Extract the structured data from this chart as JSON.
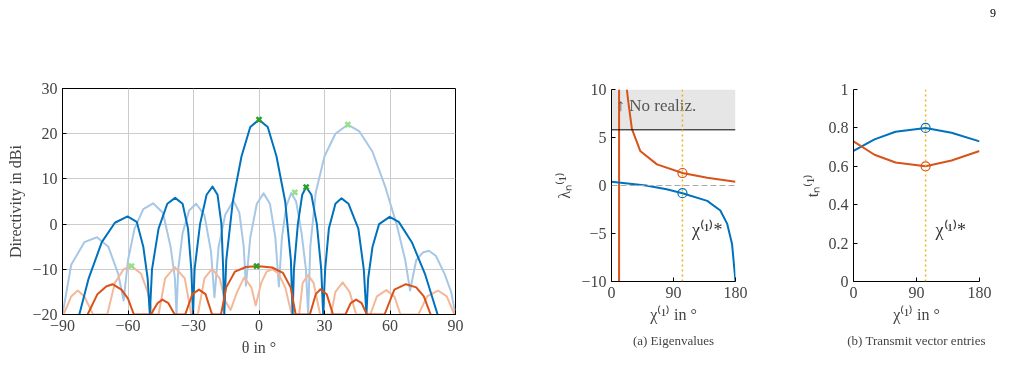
{
  "chart_data": [
    {
      "type": "line",
      "xlabel": "θ in °",
      "ylabel": "Directivity in dBi",
      "xlim": [
        -90,
        90
      ],
      "ylim": [
        -20,
        30
      ],
      "xticks": [
        {
          "value": -90,
          "label": "−90"
        },
        {
          "value": -60,
          "label": "−60"
        },
        {
          "value": -30,
          "label": "−30"
        },
        0,
        30,
        60,
        90
      ],
      "yticks": [
        {
          "value": -20,
          "label": "−20"
        },
        {
          "value": -10,
          "label": "−10"
        },
        0,
        10,
        20,
        30
      ],
      "grid": true,
      "series": [
        {
          "color": "#a6c8e6",
          "x": [
            -90,
            -86,
            -80,
            -74.2,
            -69,
            -64.5,
            -62,
            -60,
            -57,
            -53,
            -48.5,
            -44,
            -40.5,
            -38.5,
            -37.8,
            -37,
            -35,
            -32,
            -28.8,
            -25,
            -22,
            -20.4,
            -18.5,
            -15.5,
            -11.7,
            -9,
            -7,
            -6,
            -4,
            -1,
            2.1,
            5,
            7.5,
            9.1,
            10.5,
            12.5,
            14.8,
            17,
            19.5,
            21.5,
            22.5,
            23.5,
            26,
            30,
            35,
            40.7,
            46,
            52,
            58,
            63,
            67,
            69.2,
            72,
            75,
            77.8,
            81,
            85,
            88,
            90
          ],
          "values": [
            -20,
            -9,
            -4,
            -2.9,
            -5,
            -11,
            -16.9,
            -8,
            -1,
            3.3,
            4.6,
            2.5,
            -5,
            -12,
            -20,
            -10,
            -2,
            3,
            4.5,
            2,
            -6,
            -16.2,
            -5,
            2,
            5.2,
            2.5,
            -5,
            -13.6,
            -3,
            4.5,
            6.8,
            4.5,
            -3,
            -13.8,
            -3,
            4,
            6.9,
            5,
            -2,
            -10,
            -20,
            -5,
            7,
            15,
            20,
            22,
            20.5,
            16,
            8,
            0,
            -8,
            -14.7,
            -8,
            -6.3,
            -5.9,
            -7,
            -11,
            -15,
            -20
          ]
        },
        {
          "color": "#f4b899",
          "x": [
            -89.5,
            -86,
            -83,
            -80,
            -76,
            -69.5,
            -66,
            -62,
            -58.4,
            -54,
            -51,
            -48.7,
            -46,
            -43,
            -38.6,
            -34,
            -31,
            -28,
            -25,
            -21.5,
            -18,
            -15.5,
            -13,
            -10,
            -6.8,
            -3.5,
            -1.5,
            1,
            3.5,
            6.2,
            9,
            12,
            15,
            18.4,
            20,
            22.5,
            25,
            28,
            33,
            35,
            38.3,
            41.5,
            44.5,
            51,
            54,
            58.3,
            62,
            64.8,
            73,
            77,
            82,
            86,
            89.5
          ],
          "values": [
            -20,
            -16,
            -14.7,
            -16,
            -20,
            -20,
            -13,
            -10,
            -9.3,
            -11,
            -15,
            -20,
            -20,
            -12,
            -9.5,
            -12,
            -20,
            -20,
            -12,
            -9.9,
            -12,
            -17,
            -19,
            -15,
            -11.8,
            -14,
            -18,
            -13,
            -10.5,
            -10,
            -11,
            -14,
            -20,
            -20,
            -13,
            -11.3,
            -13,
            -20,
            -20,
            -15,
            -12.9,
            -15,
            -20,
            -20,
            -16,
            -14.6,
            -16,
            -20,
            -20,
            -16,
            -14.7,
            -16,
            -20
          ]
        },
        {
          "color": "#0072bd",
          "x": [
            -82.3,
            -78,
            -72,
            -66,
            -60.2,
            -56,
            -53,
            -51,
            -50,
            -49,
            -46,
            -42,
            -38.4,
            -35,
            -32.5,
            -31,
            -30.2,
            -29.5,
            -27,
            -24,
            -21.3,
            -19,
            -17.2,
            -16.4,
            -15.9,
            -15,
            -12,
            -8,
            -4,
            0,
            4,
            8,
            12,
            14.6,
            15.4,
            16,
            17.8,
            19.8,
            21.6,
            24,
            26.5,
            28.5,
            29.4,
            30.3,
            32,
            35,
            37.8,
            41,
            45.5,
            48,
            49.2,
            50,
            52,
            55,
            59.8,
            64,
            70,
            76,
            81.8
          ],
          "values": [
            -20,
            -12,
            -4,
            0.3,
            1.7,
            0.5,
            -5,
            -12,
            -20,
            -10,
            -1,
            4.5,
            5.8,
            4.5,
            -1,
            -10,
            -20,
            -10,
            0,
            6.5,
            8.3,
            6.5,
            0,
            -10,
            -20,
            -8,
            5,
            15,
            21.5,
            23.1,
            21.5,
            15,
            5,
            -8,
            -20,
            -10,
            0,
            6.5,
            8.2,
            6.5,
            0,
            -10,
            -20,
            -10,
            -1,
            4.5,
            5.7,
            4.5,
            -1,
            -10,
            -20,
            -12,
            -5,
            0,
            1.6,
            0.5,
            -4,
            -11,
            -20
          ]
        },
        {
          "color": "#d95319",
          "x": [
            -78.5,
            -74,
            -70,
            -67.1,
            -63,
            -60,
            -57.3,
            -49.5,
            -46.5,
            -44.3,
            -41.5,
            -38.6,
            -33.8,
            -30.5,
            -27.5,
            -24.5,
            -21.5,
            -17.4,
            -15,
            -11,
            -6,
            0,
            6,
            11,
            14.5,
            16.8,
            23.3,
            26,
            28.2,
            31,
            33.9,
            39.6,
            42,
            44.5,
            47,
            49.4,
            57.5,
            62,
            67.3,
            72,
            75.5,
            78.6
          ],
          "values": [
            -20,
            -15.5,
            -13.8,
            -13.3,
            -14.5,
            -16.5,
            -20,
            -20,
            -17.5,
            -16.7,
            -17.5,
            -20,
            -20,
            -15.5,
            -14.5,
            -15.5,
            -20,
            -20,
            -14,
            -10.5,
            -9.5,
            -9.3,
            -9.6,
            -10.8,
            -14,
            -20,
            -20,
            -15.5,
            -14.4,
            -15.5,
            -20,
            -20,
            -17.5,
            -16.7,
            -17.5,
            -20,
            -20,
            -14.5,
            -13.3,
            -14,
            -16,
            -20
          ]
        },
        {
          "type": "scatter",
          "marker": "cross",
          "color": "#98df8a",
          "x": [
            -58.4,
            16.4,
            40.7
          ],
          "values": [
            -9.3,
            7,
            22
          ]
        },
        {
          "type": "scatter",
          "marker": "cross",
          "color": "#2ca02c",
          "x": [
            -1.1,
            0,
            21.6
          ],
          "values": [
            -9.3,
            23.1,
            8.2
          ]
        }
      ]
    },
    {
      "type": "line",
      "title": "(a) Eigenvalues",
      "xlabel": "χ⁽¹⁾ in °",
      "ylabel": "λₙ⁽¹⁾",
      "xlim": [
        0,
        180
      ],
      "ylim": [
        -10,
        10
      ],
      "xticks": [
        0,
        90,
        180
      ],
      "yticks": [
        {
          "value": -10,
          "label": "−10"
        },
        {
          "value": -5,
          "label": "−5"
        },
        0,
        5,
        10
      ],
      "bands": [
        {
          "axis": "y",
          "from": 5.8,
          "to": 10,
          "label": "↑ No realiz.",
          "color": "#e6e6e6"
        }
      ],
      "ref_lines": [
        {
          "axis": "y",
          "value": 5.8,
          "color": "#000000",
          "line_style": "solid"
        },
        {
          "axis": "y",
          "value": 0,
          "color": "#aaaaaa",
          "line_style": "dashed"
        },
        {
          "axis": "x",
          "value": 103,
          "color": "#edb120",
          "line_style": "dotted",
          "label": "χ⁽¹⁾*"
        }
      ],
      "series": [
        {
          "color": "#d95319",
          "x": [
            11,
            11,
            16,
            22.3,
            24.8,
            29.6,
            41.7,
            66,
            103,
            139,
            180
          ],
          "values": [
            -10,
            10,
            null,
            10,
            8.5,
            5.9,
            3.6,
            2.2,
            1.3,
            0.8,
            0.4
          ]
        },
        {
          "color": "#0072bd",
          "x": [
            0,
            50,
            80,
            103,
            139,
            158,
            168,
            175,
            180
          ],
          "values": [
            0.4,
            0,
            -0.4,
            -0.8,
            -1.6,
            -2.6,
            -4,
            -6.1,
            -10
          ]
        },
        {
          "type": "scatter",
          "marker": "circle",
          "color": "#d95319",
          "x": [
            103
          ],
          "values": [
            1.3
          ]
        },
        {
          "type": "scatter",
          "marker": "circle",
          "color": "#0072bd",
          "x": [
            103
          ],
          "values": [
            -0.8
          ]
        }
      ]
    },
    {
      "type": "line",
      "title": "(b) Transmit vector entries",
      "xlabel": "χ⁽¹⁾ in °",
      "ylabel": "tₙ⁽¹⁾",
      "xlim": [
        0,
        180
      ],
      "ylim": [
        0,
        1
      ],
      "xticks": [
        0,
        90,
        180
      ],
      "yticks": [
        0,
        0.2,
        0.4,
        0.6,
        0.8,
        1
      ],
      "ref_lines": [
        {
          "axis": "x",
          "value": 103,
          "color": "#edb120",
          "line_style": "dotted",
          "label": "χ⁽¹⁾*"
        }
      ],
      "annotations": [
        "9"
      ],
      "series": [
        {
          "color": "#0072bd",
          "x": [
            0,
            30,
            60,
            103,
            140,
            180
          ],
          "values": [
            0.68,
            0.74,
            0.78,
            0.8,
            0.775,
            0.73
          ]
        },
        {
          "color": "#d95319",
          "x": [
            0,
            30,
            60,
            103,
            140,
            180
          ],
          "values": [
            0.73,
            0.66,
            0.62,
            0.6,
            0.63,
            0.68
          ]
        },
        {
          "type": "scatter",
          "marker": "circle",
          "color": "#0072bd",
          "x": [
            103
          ],
          "values": [
            0.8
          ]
        },
        {
          "type": "scatter",
          "marker": "circle",
          "color": "#d95319",
          "x": [
            103
          ],
          "values": [
            0.6
          ]
        }
      ]
    }
  ]
}
